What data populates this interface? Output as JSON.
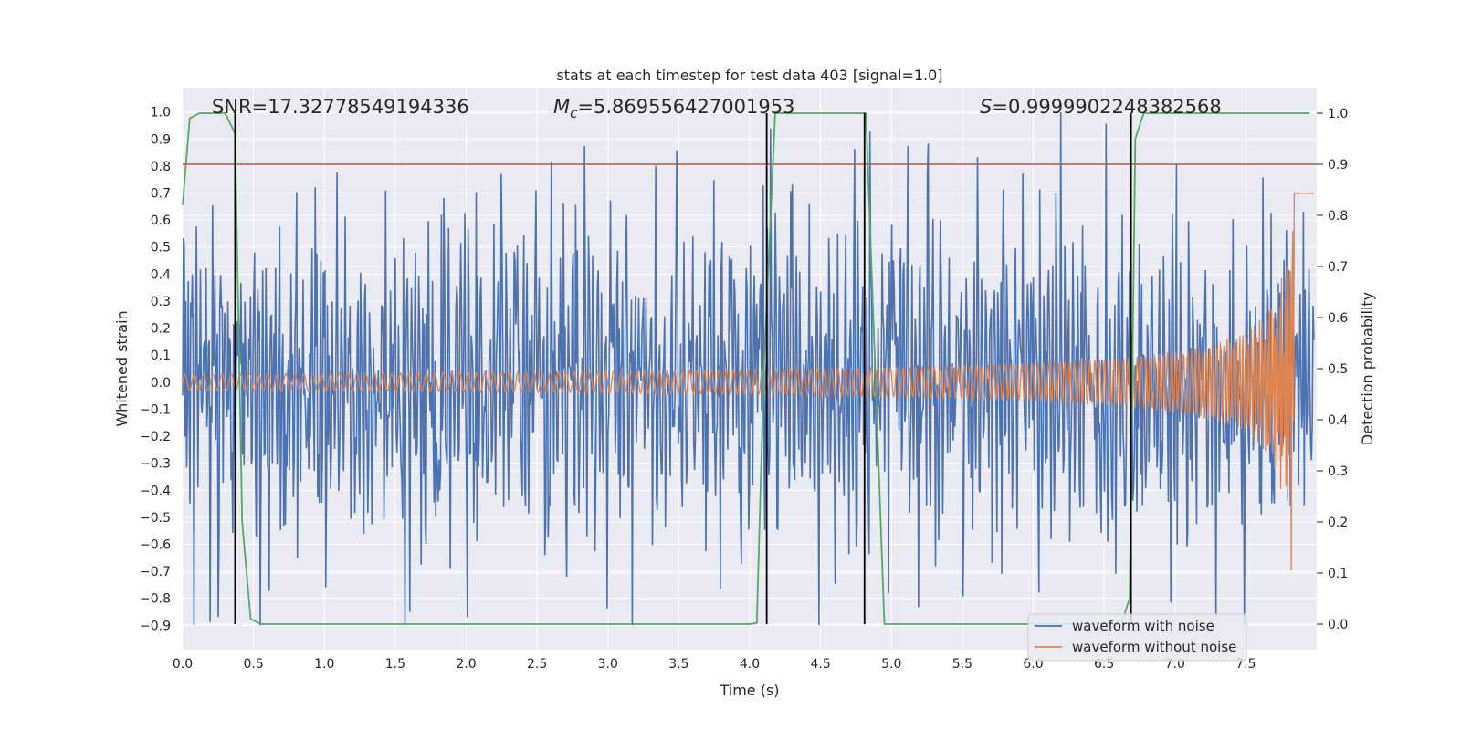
{
  "chart_data": {
    "type": "line",
    "title": "stats at each timestep for test data 403 [signal=1.0]",
    "xlabel": "Time (s)",
    "ylabel": "Whitened strain",
    "y2label": "Detection probability",
    "xlim": [
      0.0,
      8.0
    ],
    "ylim": [
      -0.99,
      1.09
    ],
    "y2lim": [
      -0.05,
      1.05
    ],
    "xticks": [
      "0.0",
      "0.5",
      "1.0",
      "1.5",
      "2.0",
      "2.5",
      "3.0",
      "3.5",
      "4.0",
      "4.5",
      "5.0",
      "5.5",
      "6.0",
      "6.5",
      "7.0",
      "7.5"
    ],
    "yticks": [
      "1.0",
      "0.9",
      "0.8",
      "0.7",
      "0.6",
      "0.5",
      "0.4",
      "0.3",
      "0.2",
      "0.1",
      "0.0",
      "−0.1",
      "−0.2",
      "−0.3",
      "−0.4",
      "−0.5",
      "−0.6",
      "−0.7",
      "−0.8",
      "−0.9"
    ],
    "y2ticks": [
      "1.0",
      "0.9",
      "0.8",
      "0.7",
      "0.6",
      "0.5",
      "0.4",
      "0.3",
      "0.2",
      "0.1",
      "0.0"
    ],
    "annotations": {
      "snr": "SNR=17.32778549194336",
      "mc_symbol": "M",
      "mc_sub": "c",
      "mc_value": "=5.869556427001953",
      "s_symbol": "S",
      "s_value": "=0.9999902248382568"
    },
    "series": [
      {
        "name": "waveform with noise",
        "color": "#4c72b0",
        "axis": "left",
        "noise_envelope": 0.45,
        "max_value": 1.0,
        "min_value": -0.9
      },
      {
        "name": "waveform without noise",
        "color": "#dd8452",
        "axis": "left",
        "start_amplitude": 0.03,
        "end_amplitude": 0.7,
        "merger_time": 7.85
      },
      {
        "name": "detection probability",
        "color": "#55a868",
        "axis": "right",
        "x": [
          0.0,
          0.05,
          0.12,
          0.3,
          0.37,
          0.42,
          0.48,
          0.55,
          1.0,
          2.0,
          3.0,
          4.0,
          4.05,
          4.1,
          4.18,
          4.25,
          4.5,
          4.82,
          4.95,
          5.5,
          6.0,
          6.5,
          6.62,
          6.68,
          6.72,
          6.78,
          7.0,
          7.5,
          7.95
        ],
        "y": [
          0.82,
          0.99,
          1.0,
          1.0,
          0.96,
          0.2,
          0.01,
          0.0,
          0.0,
          0.0,
          0.0,
          0.0,
          0.002,
          0.5,
          1.0,
          1.0,
          1.0,
          1.0,
          0.0,
          0.0,
          0.0,
          0.0,
          0.0,
          0.05,
          0.95,
          1.0,
          1.0,
          1.0,
          1.0
        ]
      }
    ],
    "threshold": {
      "value": 0.9,
      "axis": "right",
      "color": "#c44e52"
    },
    "vlines": [
      0.37,
      4.12,
      4.81,
      6.69
    ],
    "legend": {
      "placement": "lower-right",
      "entries": [
        "waveform with noise",
        "waveform without noise"
      ]
    },
    "grid": true,
    "colors": {
      "plot_bg": "#eaeaf2",
      "grid": "#ffffff",
      "vline": "#000000"
    }
  }
}
